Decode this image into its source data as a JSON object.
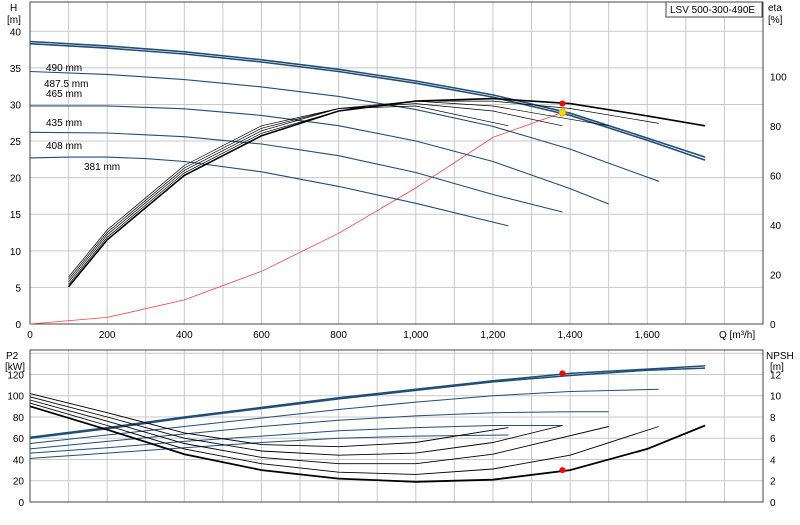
{
  "chart_data": [
    {
      "type": "line",
      "panel": "head-efficiency",
      "title": "LSV 500-300-490E",
      "xlabel": "Q [m³/h]",
      "xlim": [
        0,
        1900
      ],
      "x_ticks": [
        0,
        200,
        400,
        600,
        800,
        1000,
        1200,
        1400,
        1600
      ],
      "x_tick_labels": [
        "0",
        "200",
        "400",
        "600",
        "800",
        "1,000",
        "1,200",
        "1,400",
        "1,600"
      ],
      "ylabel_left": [
        "H",
        "[m]"
      ],
      "ylim_left": [
        0,
        44
      ],
      "y_ticks_left": [
        0,
        5,
        10,
        15,
        20,
        25,
        30,
        35,
        40
      ],
      "ylabel_right": [
        "eta",
        "[%]"
      ],
      "ylim_right": [
        0,
        130
      ],
      "y_ticks_right": [
        0,
        20,
        40,
        60,
        80,
        100
      ],
      "grid": true,
      "colors": {
        "head_curve": "#1f4e79",
        "efficiency_curve": "#000000",
        "system_curve": "#ff4040",
        "duty_point": "#ff0000",
        "bep_point": "#ffd700"
      },
      "head_series": [
        {
          "name": "490 mm",
          "x": [
            0,
            200,
            400,
            600,
            800,
            1000,
            1200,
            1400,
            1600,
            1750
          ],
          "y": [
            38.6,
            38.0,
            37.2,
            36.1,
            34.8,
            33.2,
            31.3,
            28.8,
            25.4,
            22.8
          ]
        },
        {
          "name": "487.5 mm",
          "x": [
            0,
            200,
            400,
            600,
            800,
            1000,
            1200,
            1400,
            1600,
            1750
          ],
          "y": [
            38.3,
            37.7,
            36.9,
            35.8,
            34.5,
            32.9,
            31.0,
            28.5,
            25.1,
            22.4
          ]
        },
        {
          "name": "465 mm",
          "x": [
            0,
            200,
            400,
            600,
            800,
            1000,
            1200,
            1400,
            1630
          ],
          "y": [
            34.5,
            34.1,
            33.4,
            32.4,
            31.1,
            29.3,
            27.0,
            23.9,
            19.5
          ]
        },
        {
          "name": "435 mm",
          "x": [
            0,
            200,
            400,
            600,
            800,
            1000,
            1200,
            1400,
            1500
          ],
          "y": [
            29.8,
            29.8,
            29.4,
            28.5,
            27.1,
            25.0,
            22.2,
            18.5,
            16.4
          ]
        },
        {
          "name": "408 mm",
          "x": [
            0,
            200,
            400,
            600,
            800,
            1000,
            1200,
            1380
          ],
          "y": [
            26.2,
            26.1,
            25.6,
            24.6,
            23.0,
            20.7,
            17.7,
            15.3
          ]
        },
        {
          "name": "381 mm",
          "x": [
            0,
            100,
            200,
            300,
            400,
            600,
            800,
            1000,
            1240
          ],
          "y": [
            22.7,
            22.8,
            22.8,
            22.6,
            22.2,
            20.8,
            18.8,
            16.5,
            13.4
          ]
        }
      ],
      "efficiency_series": [
        {
          "x": [
            100,
            200,
            400,
            600,
            800,
            1000,
            1200,
            1400,
            1600,
            1750
          ],
          "y": [
            15,
            34,
            60,
            76,
            86,
            90,
            91,
            89,
            84,
            80
          ]
        },
        {
          "x": [
            100,
            200,
            400,
            600,
            800,
            1000,
            1200,
            1400,
            1630
          ],
          "y": [
            16,
            35,
            61,
            77,
            86,
            90,
            90,
            87,
            81
          ]
        },
        {
          "x": [
            100,
            200,
            400,
            600,
            800,
            1000,
            1200,
            1500
          ],
          "y": [
            17,
            36,
            62,
            78,
            87,
            90,
            88,
            80
          ]
        },
        {
          "x": [
            100,
            200,
            400,
            600,
            800,
            1000,
            1200,
            1380
          ],
          "y": [
            18,
            37,
            63,
            79,
            87,
            89,
            86,
            80
          ]
        },
        {
          "x": [
            100,
            200,
            400,
            600,
            800,
            1000,
            1240
          ],
          "y": [
            19,
            38,
            64,
            80,
            87,
            88,
            80
          ]
        }
      ],
      "system_curve": {
        "x": [
          0,
          200,
          400,
          600,
          800,
          1000,
          1200,
          1380
        ],
        "y": [
          0,
          0.9,
          3.3,
          7.2,
          12.4,
          18.6,
          25.5,
          28.9
        ]
      },
      "duty_point_efficiency": {
        "x": 1380,
        "y": 89
      },
      "bep_point_head": {
        "x": 1380,
        "y": 28.9
      }
    },
    {
      "type": "line",
      "panel": "power-npsh",
      "xlim": [
        0,
        1900
      ],
      "ylabel_left": [
        "P2",
        "[kW]"
      ],
      "ylim_left": [
        0,
        143
      ],
      "y_ticks_left": [
        0,
        20,
        40,
        60,
        80,
        100,
        120
      ],
      "ylabel_right": [
        "NPSH",
        "[m]"
      ],
      "ylim_right": [
        0,
        14.3
      ],
      "y_ticks_right": [
        0,
        2,
        4,
        6,
        8,
        10,
        12
      ],
      "grid": true,
      "power_series": [
        {
          "x": [
            0,
            200,
            400,
            600,
            800,
            1000,
            1200,
            1400,
            1600,
            1750
          ],
          "y": [
            61,
            70,
            80,
            89,
            98,
            106,
            114,
            121,
            125,
            128
          ]
        },
        {
          "x": [
            0,
            200,
            400,
            600,
            800,
            1000,
            1200,
            1400,
            1600,
            1750
          ],
          "y": [
            60,
            69,
            79,
            88,
            97,
            105,
            113,
            119,
            124,
            126
          ]
        },
        {
          "x": [
            0,
            200,
            400,
            600,
            800,
            1000,
            1200,
            1400,
            1630
          ],
          "y": [
            55,
            63,
            71,
            79,
            87,
            94,
            100,
            104,
            106
          ]
        },
        {
          "x": [
            0,
            200,
            400,
            600,
            800,
            1000,
            1200,
            1400,
            1500
          ],
          "y": [
            50,
            57,
            64,
            71,
            77,
            81,
            84,
            85,
            85
          ]
        },
        {
          "x": [
            0,
            200,
            400,
            600,
            800,
            1000,
            1200,
            1380
          ],
          "y": [
            46,
            51,
            57,
            62,
            67,
            70,
            72,
            72
          ]
        },
        {
          "x": [
            0,
            200,
            400,
            600,
            800,
            1000,
            1240
          ],
          "y": [
            41,
            46,
            51,
            56,
            60,
            62,
            63
          ]
        }
      ],
      "npsh_series": [
        {
          "x": [
            0,
            200,
            400,
            600,
            800,
            1000,
            1200,
            1400,
            1600,
            1750
          ],
          "y": [
            9.0,
            6.8,
            4.5,
            3.0,
            2.2,
            1.9,
            2.1,
            3.0,
            5.0,
            7.2
          ]
        },
        {
          "x": [
            0,
            200,
            400,
            600,
            800,
            1000,
            1200,
            1400,
            1630
          ],
          "y": [
            9.3,
            7.2,
            5.0,
            3.6,
            2.8,
            2.6,
            3.1,
            4.4,
            7.1
          ]
        },
        {
          "x": [
            0,
            200,
            400,
            600,
            800,
            1000,
            1200,
            1500
          ],
          "y": [
            9.6,
            7.6,
            5.5,
            4.2,
            3.6,
            3.6,
            4.5,
            7.1
          ]
        },
        {
          "x": [
            0,
            200,
            400,
            600,
            800,
            1000,
            1200,
            1380
          ],
          "y": [
            9.9,
            8.0,
            6.0,
            4.8,
            4.4,
            4.6,
            5.6,
            7.2
          ]
        },
        {
          "x": [
            0,
            200,
            400,
            600,
            800,
            1000,
            1240
          ],
          "y": [
            10.2,
            8.4,
            6.5,
            5.4,
            5.2,
            5.6,
            7.0
          ]
        }
      ],
      "duty_point_power": {
        "x": 1380,
        "y": 121
      },
      "duty_point_npsh": {
        "x": 1380,
        "y": 3.0
      }
    }
  ]
}
